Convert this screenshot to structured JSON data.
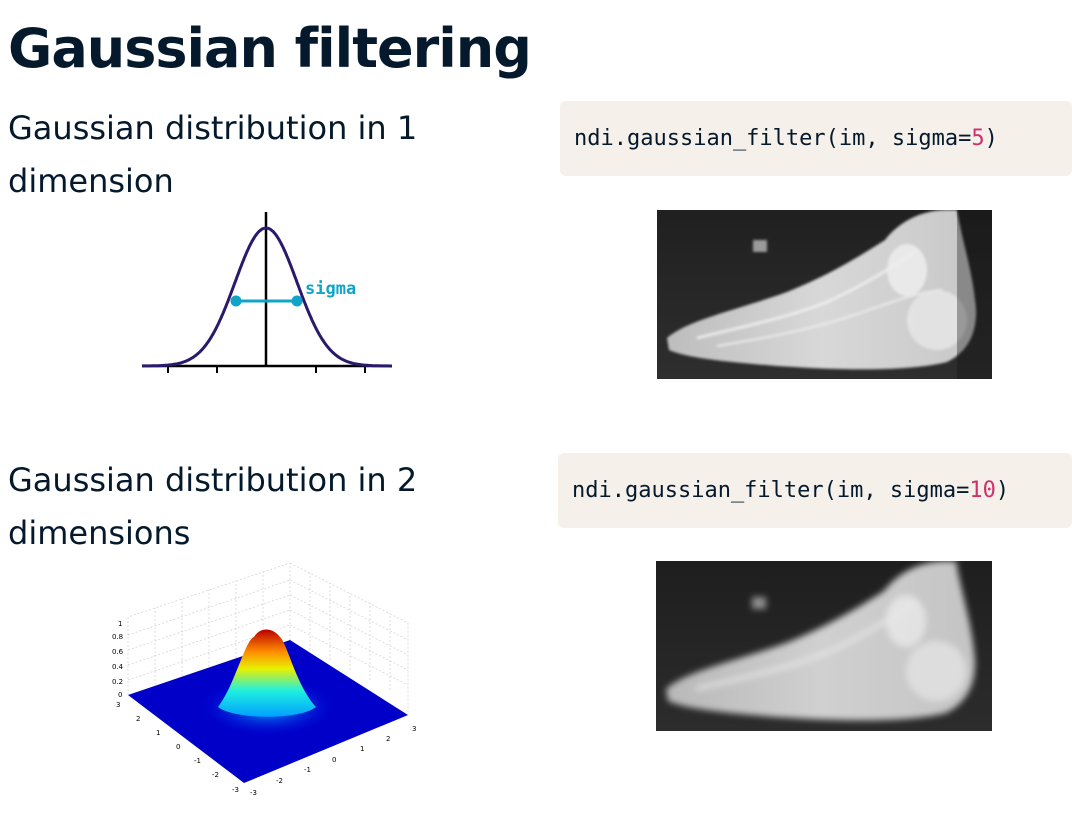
{
  "slide": {
    "title": "Gaussian filtering",
    "section_1d": {
      "label": "Gaussian distribution in 1 dimension",
      "sigma_label": "sigma",
      "code": {
        "prefix": "ndi.gaussian_filter(im, sigma=",
        "value": "5",
        "suffix": ")"
      }
    },
    "section_2d": {
      "label": "Gaussian distribution in 2 dimensions",
      "code": {
        "prefix": "ndi.gaussian_filter(im, sigma=",
        "value": "10",
        "suffix": ")"
      },
      "z_ticks": [
        "0",
        "0.2",
        "0.4",
        "0.6",
        "0.8",
        "1"
      ],
      "axis_ticks": [
        "-3",
        "-2",
        "-1",
        "0",
        "1",
        "2",
        "3"
      ]
    }
  },
  "colors": {
    "accent": "#05192d",
    "code_background": "#f5f1ea",
    "number": "#d0316d",
    "sigma": "#0fa4c8",
    "curve": "#2b1a6b"
  },
  "images": {
    "xray_sigma5": "foot-xray-blur-5",
    "xray_sigma10": "foot-xray-blur-10"
  }
}
